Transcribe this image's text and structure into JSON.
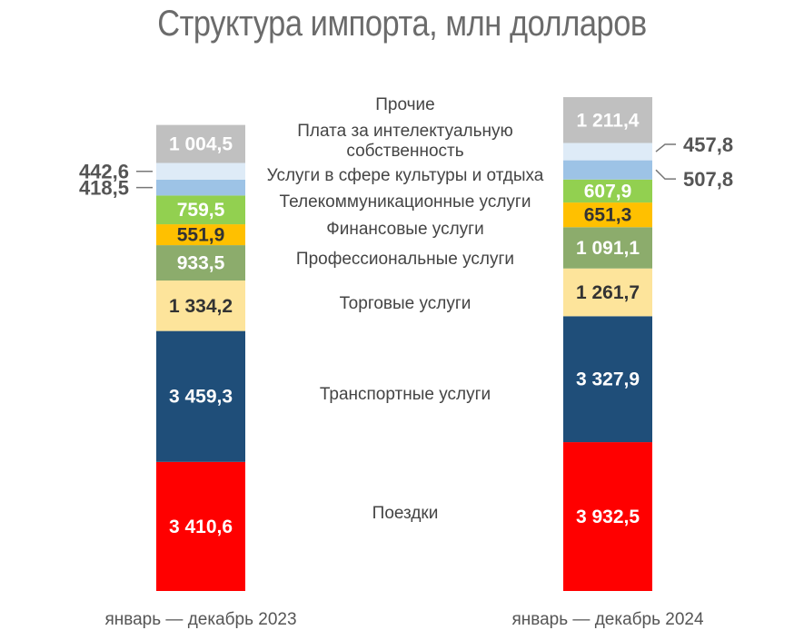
{
  "chart_data": {
    "type": "bar",
    "stacked": true,
    "title": "Структура импорта, млн долларов",
    "categories": [
      "январь — декабрь 2023",
      "январь — декабрь 2024"
    ],
    "series": [
      {
        "name": "Поездки",
        "color": "#ff0000",
        "values": [
          3410.6,
          3932.5
        ],
        "labels": [
          "3 410,6",
          "3 932,5"
        ],
        "label_color": "#ffffff"
      },
      {
        "name": "Транспортные услуги",
        "color": "#1f4e79",
        "values": [
          3459.3,
          3327.9
        ],
        "labels": [
          "3 459,3",
          "3 327,9"
        ],
        "label_color": "#ffffff"
      },
      {
        "name": "Торговые услуги",
        "color": "#fde49b",
        "values": [
          1334.2,
          1261.7
        ],
        "labels": [
          "1 334,2",
          "1 261,7"
        ],
        "label_color": "#333333"
      },
      {
        "name": "Профессиональные услуги",
        "color": "#8cac6c",
        "values": [
          933.5,
          1091.1
        ],
        "labels": [
          "933,5",
          "1 091,1"
        ],
        "label_color": "#ffffff"
      },
      {
        "name": "Финансовые услуги",
        "color": "#ffc000",
        "values": [
          551.9,
          651.3
        ],
        "labels": [
          "551,9",
          "651,3"
        ],
        "label_color": "#333333"
      },
      {
        "name": "Телекоммуникационные услуги",
        "color": "#92d050",
        "values": [
          759.5,
          607.9
        ],
        "labels": [
          "759,5",
          "607,9"
        ],
        "label_color": "#ffffff"
      },
      {
        "name": "Услуги в сфере культуры и отдыха",
        "color": "#9dc3e6",
        "values": [
          418.5,
          507.8
        ],
        "labels": [
          "418,5",
          "507,8"
        ],
        "label_color": "#555555",
        "outside": true
      },
      {
        "name": "Плата за интелектуальную собственность",
        "name_lines": [
          "Плата за интелектуальную",
          "собственность"
        ],
        "color": "#deebf7",
        "values": [
          442.6,
          457.8
        ],
        "labels": [
          "442,6",
          "457,8"
        ],
        "label_color": "#555555",
        "outside": true
      },
      {
        "name": "Прочие",
        "color": "#c0c0c0",
        "values": [
          1004.5,
          1211.4
        ],
        "labels": [
          "1 004,5",
          "1 211,4"
        ],
        "label_color": "#ffffff"
      }
    ]
  }
}
